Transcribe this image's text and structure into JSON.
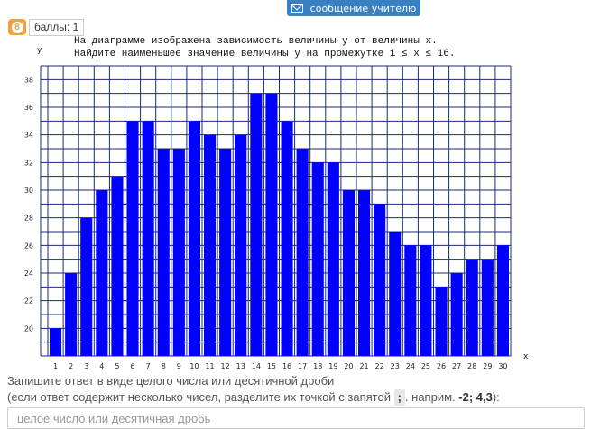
{
  "message_button": {
    "label": "сообщение учителю",
    "icon": "mail-icon"
  },
  "question": {
    "number": "8",
    "points_label": "баллы: 1"
  },
  "task": {
    "line1": "На диаграмме изображена зависимость величины y от величины x.",
    "line2": "Найдите наименьшее значение величины y на промежутке 1 ≤ x ≤ 16."
  },
  "chart_data": {
    "type": "bar",
    "xlabel": "x",
    "ylabel": "y",
    "categories": [
      "1",
      "2",
      "3",
      "4",
      "5",
      "6",
      "7",
      "8",
      "9",
      "10",
      "11",
      "12",
      "13",
      "14",
      "15",
      "16",
      "17",
      "18",
      "19",
      "20",
      "21",
      "22",
      "23",
      "24",
      "25",
      "26",
      "27",
      "28",
      "29",
      "30"
    ],
    "values": [
      20,
      24,
      28,
      30,
      31,
      35,
      35,
      33,
      33,
      35,
      34,
      33,
      34,
      37,
      37,
      35,
      33,
      32,
      32,
      30,
      30,
      29,
      27,
      26,
      26,
      23,
      24,
      25,
      25,
      26
    ],
    "yticks": [
      20,
      22,
      24,
      26,
      28,
      30,
      32,
      34,
      36,
      38
    ],
    "ylim": [
      18,
      39
    ],
    "grid": true,
    "bar_color": "#0000ff"
  },
  "answer": {
    "hint_line1": "Запишите ответ в виде целого числа или десятичной дроби",
    "hint_line2_prefix": "(если ответ содержит несколько чисел, разделите их точкой с запятой",
    "separator": ";",
    "hint_line2_mid": ". наприм.",
    "example": "-2; 4,3",
    "hint_line2_suffix": "):",
    "placeholder": "целое число или десятичная дробь"
  }
}
